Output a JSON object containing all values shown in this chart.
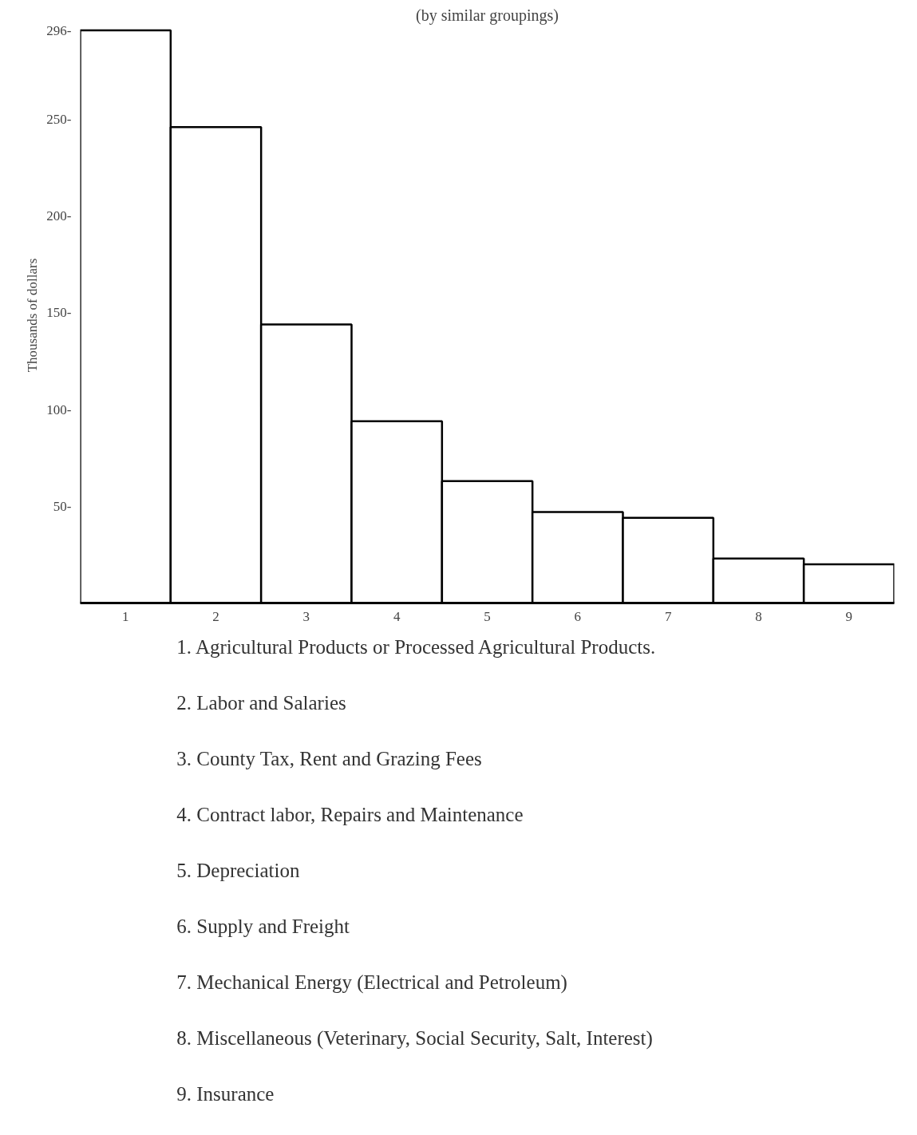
{
  "chart_data": {
    "type": "bar",
    "title": "(by similar groupings)",
    "ylabel": "Thousands of dollars",
    "categories": [
      "1",
      "2",
      "3",
      "4",
      "5",
      "6",
      "7",
      "8",
      "9"
    ],
    "values": [
      296,
      246,
      144,
      94,
      63,
      47,
      44,
      23,
      20
    ],
    "color": "#ffffff",
    "ylim": [
      0,
      296
    ],
    "yticks": [
      {
        "value": 50,
        "label": "50-"
      },
      {
        "value": 100,
        "label": "100-"
      },
      {
        "value": 150,
        "label": "150-"
      },
      {
        "value": 200,
        "label": "200-"
      },
      {
        "value": 250,
        "label": "250-"
      },
      {
        "value": 296,
        "label": "296-"
      }
    ],
    "grid": false,
    "annotations": [
      "1.  Agricultural Products or Processed Agricultural Products.",
      "2.  Labor and Salaries",
      "3.  County Tax, Rent and Grazing Fees",
      "4.  Contract labor, Repairs and Maintenance",
      "5.  Depreciation",
      "6.  Supply and Freight",
      "7.  Mechanical Energy (Electrical and Petroleum)",
      "8.  Miscellaneous (Veterinary, Social Security, Salt, Interest)",
      "9.  Insurance"
    ]
  }
}
